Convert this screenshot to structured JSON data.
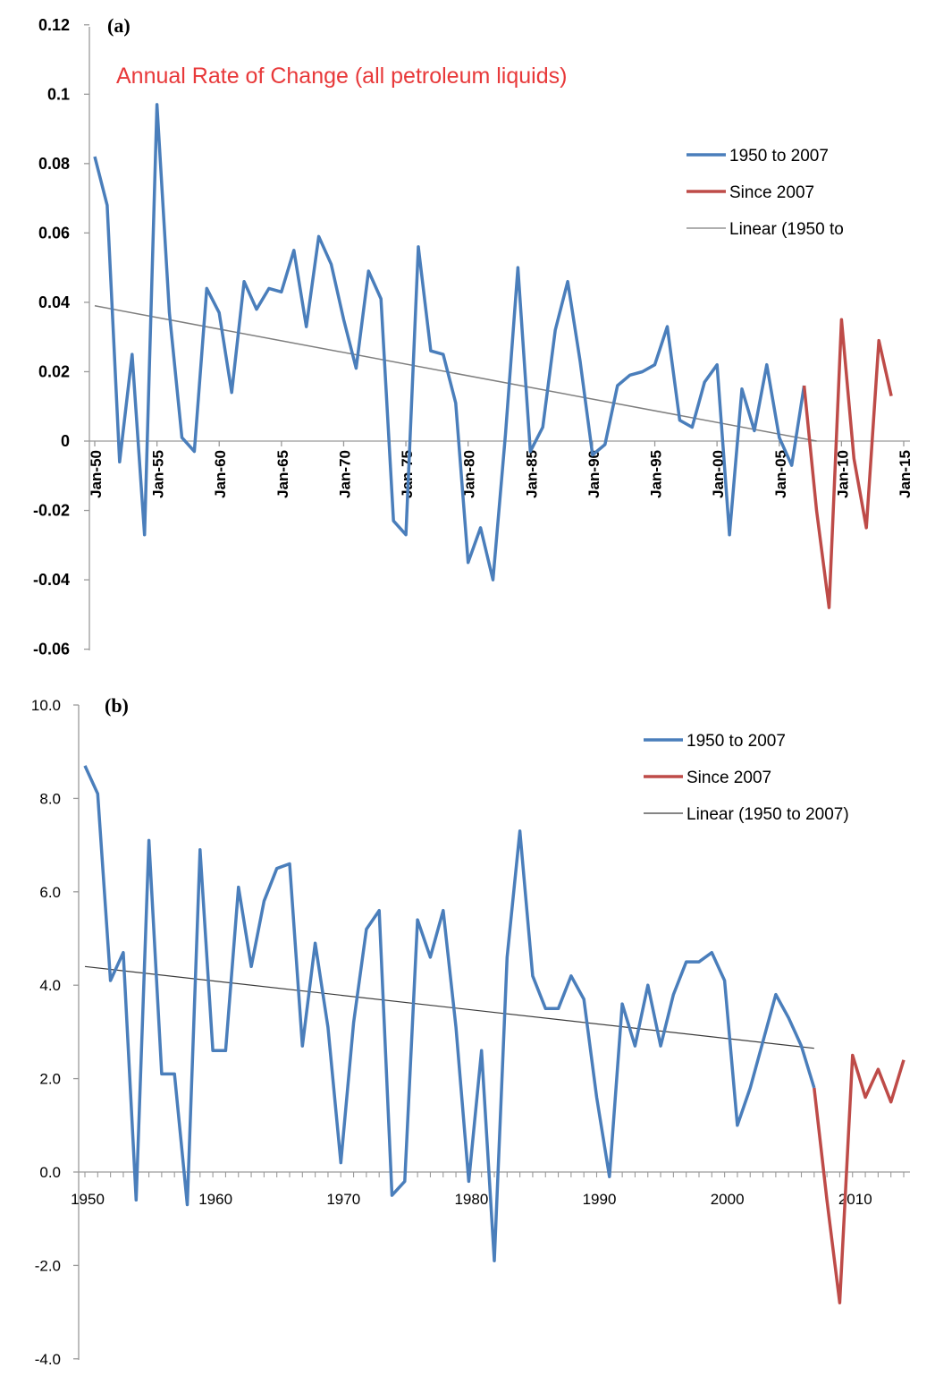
{
  "colors": {
    "series_blue": "#4a7ebb",
    "series_red": "#be4b48",
    "trend": "#7f7f7f",
    "trend_b": "#3c3c3c",
    "title_red": "#e8393a"
  },
  "chart_data": [
    {
      "type": "line",
      "panel_label": "(a)",
      "title": "Annual Rate of Change (all petroleum liquids)",
      "xlabel": "",
      "ylabel": "",
      "ylim": [
        -0.06,
        0.12
      ],
      "xlim": [
        1950,
        2015
      ],
      "grid": false,
      "legend_position": "top-right",
      "y_tick_labels": [
        "0.12",
        "0.1",
        "0.08",
        "0.06",
        "0.04",
        "0.02",
        "0",
        "-0.02",
        "-0.04",
        "-0.06"
      ],
      "x_tick_labels": [
        "Jan-50",
        "Jan-55",
        "Jan-60",
        "Jan-65",
        "Jan-70",
        "Jan-75",
        "Jan-80",
        "Jan-85",
        "Jan-90",
        "Jan-95",
        "Jan-00",
        "Jan-05",
        "Jan-10",
        "Jan-15"
      ],
      "series": [
        {
          "name": "1950 to 2007",
          "x": [
            1950,
            1951,
            1952,
            1953,
            1954,
            1955,
            1956,
            1957,
            1958,
            1959,
            1960,
            1961,
            1962,
            1963,
            1964,
            1965,
            1966,
            1967,
            1968,
            1969,
            1970,
            1971,
            1972,
            1973,
            1974,
            1975,
            1976,
            1977,
            1978,
            1979,
            1980,
            1981,
            1982,
            1983,
            1984,
            1985,
            1986,
            1987,
            1988,
            1989,
            1990,
            1991,
            1992,
            1993,
            1994,
            1995,
            1996,
            1997,
            1998,
            1999,
            2000,
            2001,
            2002,
            2003,
            2004,
            2005,
            2006,
            2007
          ],
          "values": [
            0.082,
            0.068,
            -0.006,
            0.025,
            -0.027,
            0.097,
            0.037,
            0.001,
            -0.003,
            0.044,
            0.037,
            0.014,
            0.046,
            0.038,
            0.044,
            0.043,
            0.055,
            0.033,
            0.059,
            0.051,
            0.035,
            0.021,
            0.049,
            0.041,
            -0.023,
            -0.027,
            0.056,
            0.026,
            0.025,
            0.011,
            -0.035,
            -0.025,
            -0.04,
            0.002,
            0.05,
            -0.003,
            0.004,
            0.032,
            0.046,
            0.023,
            -0.004,
            -0.001,
            0.016,
            0.019,
            0.02,
            0.022,
            0.033,
            0.006,
            0.004,
            0.017,
            0.022,
            -0.027,
            0.015,
            0.003,
            0.022,
            0.001,
            -0.007,
            0.016
          ]
        },
        {
          "name": "Since 2007",
          "x": [
            2007,
            2008,
            2009,
            2010,
            2011,
            2012,
            2013,
            2014
          ],
          "values": [
            0.016,
            -0.02,
            -0.048,
            0.035,
            -0.005,
            -0.025,
            0.029,
            0.013
          ]
        },
        {
          "name": "Linear (1950 to",
          "type": "trendline",
          "x": [
            1950,
            2008
          ],
          "values": [
            0.039,
            0.0
          ]
        }
      ]
    },
    {
      "type": "line",
      "panel_label": "(b)",
      "title": "",
      "xlabel": "",
      "ylabel": "",
      "ylim": [
        -4.0,
        10.0
      ],
      "xlim": [
        1950,
        2014
      ],
      "grid": false,
      "legend_position": "top-right",
      "y_tick_labels": [
        "10.0",
        "8.0",
        "6.0",
        "4.0",
        "2.0",
        "0.0",
        "-2.0",
        "-4.0"
      ],
      "x_tick_labels": [
        "1950",
        "1960",
        "1970",
        "1980",
        "1990",
        "2000",
        "2010"
      ],
      "series": [
        {
          "name": "1950 to 2007",
          "x": [
            1950,
            1951,
            1952,
            1953,
            1954,
            1955,
            1956,
            1957,
            1958,
            1959,
            1960,
            1961,
            1962,
            1963,
            1964,
            1965,
            1966,
            1967,
            1968,
            1969,
            1970,
            1971,
            1972,
            1973,
            1974,
            1975,
            1976,
            1977,
            1978,
            1979,
            1980,
            1981,
            1982,
            1983,
            1984,
            1985,
            1986,
            1987,
            1988,
            1989,
            1990,
            1991,
            1992,
            1993,
            1994,
            1995,
            1996,
            1997,
            1998,
            1999,
            2000,
            2001,
            2002,
            2003,
            2004,
            2005,
            2006,
            2007
          ],
          "values": [
            8.7,
            8.1,
            4.1,
            4.7,
            -0.6,
            7.1,
            2.1,
            2.1,
            -0.7,
            6.9,
            2.6,
            2.6,
            6.1,
            4.4,
            5.8,
            6.5,
            6.6,
            2.7,
            4.9,
            3.1,
            0.2,
            3.2,
            5.2,
            5.6,
            -0.5,
            -0.2,
            5.4,
            4.6,
            5.6,
            3.1,
            -0.2,
            2.6,
            -1.9,
            4.6,
            7.3,
            4.2,
            3.5,
            3.5,
            4.2,
            3.7,
            1.6,
            -0.1,
            3.6,
            2.7,
            4.0,
            2.7,
            3.8,
            4.5,
            4.5,
            4.7,
            4.1,
            1.0,
            1.8,
            2.8,
            3.8,
            3.3,
            2.7,
            1.8
          ]
        },
        {
          "name": "Since 2007",
          "x": [
            2007,
            2008,
            2009,
            2010,
            2011,
            2012,
            2013,
            2014
          ],
          "values": [
            1.8,
            -0.6,
            -2.8,
            2.5,
            1.6,
            2.2,
            1.5,
            2.4
          ]
        },
        {
          "name": "Linear (1950 to 2007)",
          "type": "trendline",
          "x": [
            1950,
            2007
          ],
          "values": [
            4.4,
            2.65
          ]
        }
      ]
    }
  ]
}
